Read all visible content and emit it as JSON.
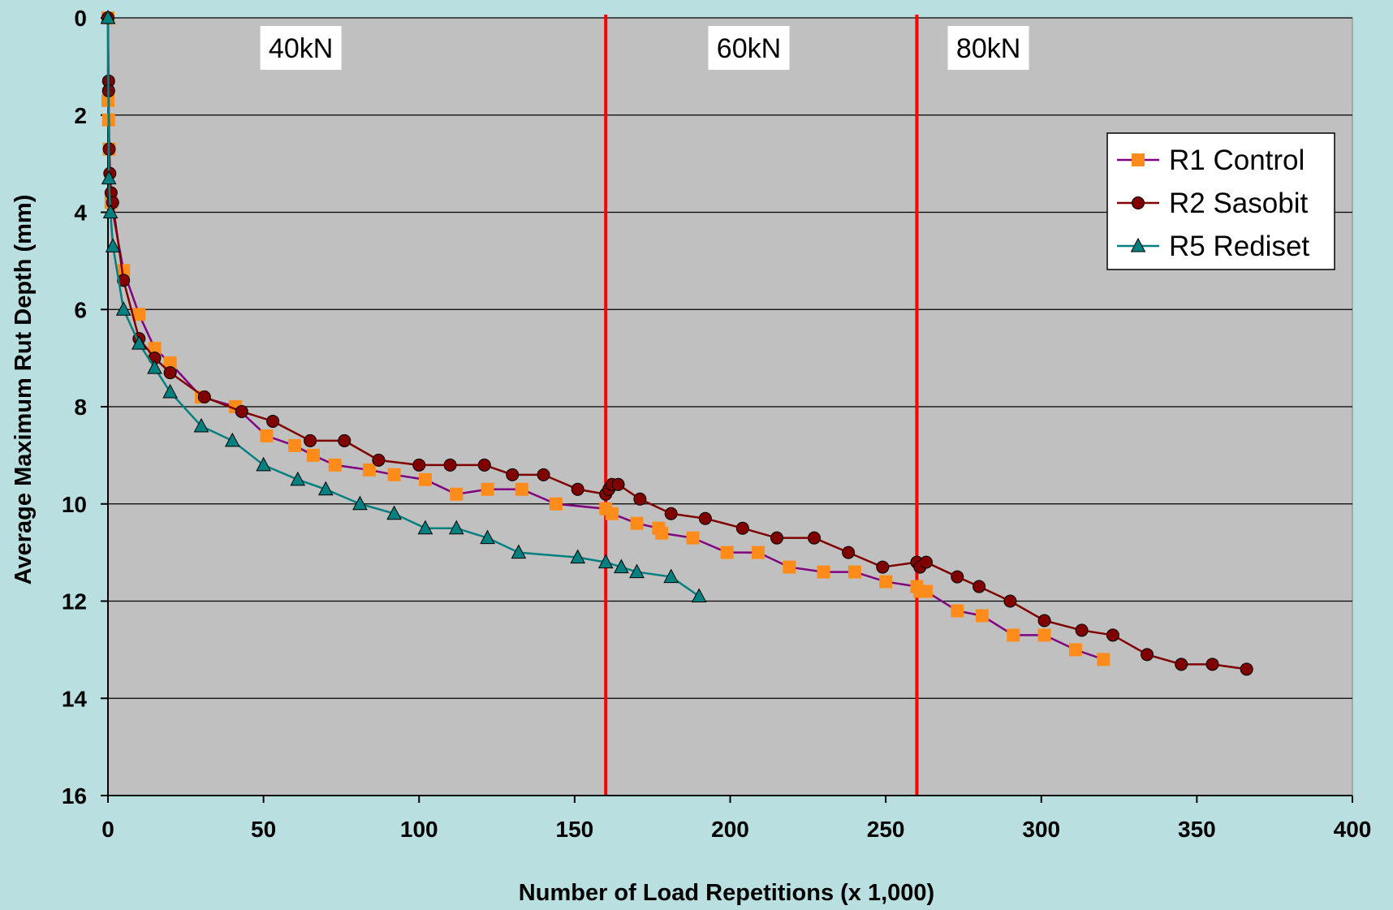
{
  "chart_data": {
    "type": "line",
    "title": "",
    "xlabel": "Number of Load Repetitions (x 1,000)",
    "ylabel": "Average Maximum Rut Depth (mm)",
    "xlim": [
      0,
      400
    ],
    "ylim": [
      0,
      16
    ],
    "y_inverted": true,
    "xticks": [
      0,
      50,
      100,
      150,
      200,
      250,
      300,
      350,
      400
    ],
    "yticks": [
      0,
      2,
      4,
      6,
      8,
      10,
      12,
      14,
      16
    ],
    "grid": "horizontal",
    "legend_position": "top-right",
    "background": "#b9dfe0",
    "plot_background": "#c0c0c0",
    "vertical_lines": [
      {
        "x": 160,
        "color": "#ff0000"
      },
      {
        "x": 260,
        "color": "#ff0000"
      }
    ],
    "region_labels": [
      {
        "text": "40kN",
        "x": 62
      },
      {
        "text": "60kN",
        "x": 206
      },
      {
        "text": "80kN",
        "x": 283
      }
    ],
    "series": [
      {
        "name": "R1 Control",
        "line_color": "#800080",
        "marker": "square",
        "marker_color": "#ff8c1a",
        "x": [
          0,
          0,
          0.2,
          0.4,
          1,
          5,
          10,
          15,
          20,
          30,
          41,
          51,
          60,
          66,
          73,
          84,
          92,
          102,
          112,
          122,
          133,
          144,
          160,
          162,
          170,
          177,
          178,
          188,
          199,
          209,
          219,
          230,
          240,
          250,
          260,
          261,
          263,
          273,
          281,
          291,
          301,
          311,
          320
        ],
        "y": [
          0,
          1.7,
          2.1,
          2.7,
          3.8,
          5.2,
          6.1,
          6.8,
          7.1,
          7.8,
          8.0,
          8.6,
          8.8,
          9.0,
          9.2,
          9.3,
          9.4,
          9.5,
          9.8,
          9.7,
          9.7,
          10.0,
          10.1,
          10.2,
          10.4,
          10.5,
          10.6,
          10.7,
          11.0,
          11.0,
          11.3,
          11.4,
          11.4,
          11.6,
          11.7,
          11.8,
          11.8,
          12.2,
          12.3,
          12.7,
          12.7,
          13.0,
          13.2
        ]
      },
      {
        "name": "R2 Sasobit",
        "line_color": "#800000",
        "marker": "circle",
        "marker_color": "#800000",
        "x": [
          0,
          0.2,
          0.2,
          0.4,
          0.6,
          1,
          1.5,
          5,
          10,
          15,
          20,
          31,
          43,
          53,
          65,
          76,
          87,
          100,
          110,
          121,
          130,
          140,
          151,
          160,
          161,
          162,
          164,
          171,
          181,
          192,
          204,
          215,
          227,
          238,
          249,
          260,
          261,
          263,
          273,
          280,
          290,
          301,
          313,
          323,
          334,
          345,
          355,
          366
        ],
        "y": [
          0,
          1.3,
          1.5,
          2.7,
          3.2,
          3.6,
          3.8,
          5.4,
          6.6,
          7.0,
          7.3,
          7.8,
          8.1,
          8.3,
          8.7,
          8.7,
          9.1,
          9.2,
          9.2,
          9.2,
          9.4,
          9.4,
          9.7,
          9.8,
          9.7,
          9.6,
          9.6,
          9.9,
          10.2,
          10.3,
          10.5,
          10.7,
          10.7,
          11.0,
          11.3,
          11.2,
          11.3,
          11.2,
          11.5,
          11.7,
          12.0,
          12.4,
          12.6,
          12.7,
          13.1,
          13.3,
          13.3,
          13.4
        ]
      },
      {
        "name": "R5 Rediset",
        "line_color": "#008080",
        "marker": "triangle",
        "marker_color": "#008080",
        "x": [
          0,
          0.3,
          0.8,
          1.6,
          5,
          10,
          15,
          20,
          30,
          40,
          50,
          61,
          70,
          81,
          92,
          102,
          112,
          122,
          132,
          151,
          160,
          165,
          170,
          181,
          190
        ],
        "y": [
          0,
          3.3,
          4.0,
          4.7,
          6.0,
          6.7,
          7.2,
          7.7,
          8.4,
          8.7,
          9.2,
          9.5,
          9.7,
          10.0,
          10.2,
          10.5,
          10.5,
          10.7,
          11.0,
          11.1,
          11.2,
          11.3,
          11.4,
          11.5,
          11.9
        ]
      }
    ]
  }
}
